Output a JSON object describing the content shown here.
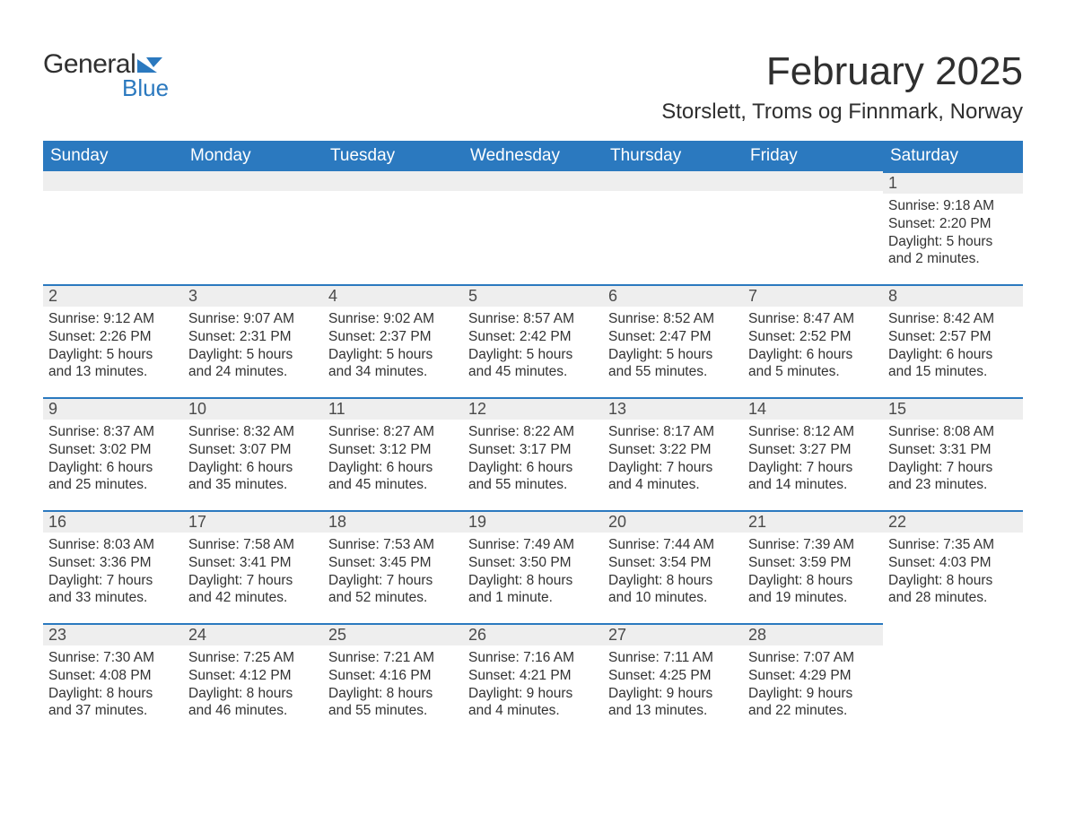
{
  "logo": {
    "text1": "General",
    "text2": "Blue"
  },
  "title": "February 2025",
  "location": "Storslett, Troms og Finnmark, Norway",
  "colors": {
    "header_bg": "#2b79bf",
    "header_text": "#ffffff",
    "dayhead_bg": "#eeeeee",
    "dayhead_border": "#2b79bf",
    "body_text": "#323232",
    "page_bg": "#ffffff",
    "logo_accent": "#2b79bf"
  },
  "weekdays": [
    "Sunday",
    "Monday",
    "Tuesday",
    "Wednesday",
    "Thursday",
    "Friday",
    "Saturday"
  ],
  "weeks": [
    [
      null,
      null,
      null,
      null,
      null,
      null,
      {
        "num": "1",
        "sunrise": "Sunrise: 9:18 AM",
        "sunset": "Sunset: 2:20 PM",
        "day1": "Daylight: 5 hours",
        "day2": "and 2 minutes."
      }
    ],
    [
      {
        "num": "2",
        "sunrise": "Sunrise: 9:12 AM",
        "sunset": "Sunset: 2:26 PM",
        "day1": "Daylight: 5 hours",
        "day2": "and 13 minutes."
      },
      {
        "num": "3",
        "sunrise": "Sunrise: 9:07 AM",
        "sunset": "Sunset: 2:31 PM",
        "day1": "Daylight: 5 hours",
        "day2": "and 24 minutes."
      },
      {
        "num": "4",
        "sunrise": "Sunrise: 9:02 AM",
        "sunset": "Sunset: 2:37 PM",
        "day1": "Daylight: 5 hours",
        "day2": "and 34 minutes."
      },
      {
        "num": "5",
        "sunrise": "Sunrise: 8:57 AM",
        "sunset": "Sunset: 2:42 PM",
        "day1": "Daylight: 5 hours",
        "day2": "and 45 minutes."
      },
      {
        "num": "6",
        "sunrise": "Sunrise: 8:52 AM",
        "sunset": "Sunset: 2:47 PM",
        "day1": "Daylight: 5 hours",
        "day2": "and 55 minutes."
      },
      {
        "num": "7",
        "sunrise": "Sunrise: 8:47 AM",
        "sunset": "Sunset: 2:52 PM",
        "day1": "Daylight: 6 hours",
        "day2": "and 5 minutes."
      },
      {
        "num": "8",
        "sunrise": "Sunrise: 8:42 AM",
        "sunset": "Sunset: 2:57 PM",
        "day1": "Daylight: 6 hours",
        "day2": "and 15 minutes."
      }
    ],
    [
      {
        "num": "9",
        "sunrise": "Sunrise: 8:37 AM",
        "sunset": "Sunset: 3:02 PM",
        "day1": "Daylight: 6 hours",
        "day2": "and 25 minutes."
      },
      {
        "num": "10",
        "sunrise": "Sunrise: 8:32 AM",
        "sunset": "Sunset: 3:07 PM",
        "day1": "Daylight: 6 hours",
        "day2": "and 35 minutes."
      },
      {
        "num": "11",
        "sunrise": "Sunrise: 8:27 AM",
        "sunset": "Sunset: 3:12 PM",
        "day1": "Daylight: 6 hours",
        "day2": "and 45 minutes."
      },
      {
        "num": "12",
        "sunrise": "Sunrise: 8:22 AM",
        "sunset": "Sunset: 3:17 PM",
        "day1": "Daylight: 6 hours",
        "day2": "and 55 minutes."
      },
      {
        "num": "13",
        "sunrise": "Sunrise: 8:17 AM",
        "sunset": "Sunset: 3:22 PM",
        "day1": "Daylight: 7 hours",
        "day2": "and 4 minutes."
      },
      {
        "num": "14",
        "sunrise": "Sunrise: 8:12 AM",
        "sunset": "Sunset: 3:27 PM",
        "day1": "Daylight: 7 hours",
        "day2": "and 14 minutes."
      },
      {
        "num": "15",
        "sunrise": "Sunrise: 8:08 AM",
        "sunset": "Sunset: 3:31 PM",
        "day1": "Daylight: 7 hours",
        "day2": "and 23 minutes."
      }
    ],
    [
      {
        "num": "16",
        "sunrise": "Sunrise: 8:03 AM",
        "sunset": "Sunset: 3:36 PM",
        "day1": "Daylight: 7 hours",
        "day2": "and 33 minutes."
      },
      {
        "num": "17",
        "sunrise": "Sunrise: 7:58 AM",
        "sunset": "Sunset: 3:41 PM",
        "day1": "Daylight: 7 hours",
        "day2": "and 42 minutes."
      },
      {
        "num": "18",
        "sunrise": "Sunrise: 7:53 AM",
        "sunset": "Sunset: 3:45 PM",
        "day1": "Daylight: 7 hours",
        "day2": "and 52 minutes."
      },
      {
        "num": "19",
        "sunrise": "Sunrise: 7:49 AM",
        "sunset": "Sunset: 3:50 PM",
        "day1": "Daylight: 8 hours",
        "day2": "and 1 minute."
      },
      {
        "num": "20",
        "sunrise": "Sunrise: 7:44 AM",
        "sunset": "Sunset: 3:54 PM",
        "day1": "Daylight: 8 hours",
        "day2": "and 10 minutes."
      },
      {
        "num": "21",
        "sunrise": "Sunrise: 7:39 AM",
        "sunset": "Sunset: 3:59 PM",
        "day1": "Daylight: 8 hours",
        "day2": "and 19 minutes."
      },
      {
        "num": "22",
        "sunrise": "Sunrise: 7:35 AM",
        "sunset": "Sunset: 4:03 PM",
        "day1": "Daylight: 8 hours",
        "day2": "and 28 minutes."
      }
    ],
    [
      {
        "num": "23",
        "sunrise": "Sunrise: 7:30 AM",
        "sunset": "Sunset: 4:08 PM",
        "day1": "Daylight: 8 hours",
        "day2": "and 37 minutes."
      },
      {
        "num": "24",
        "sunrise": "Sunrise: 7:25 AM",
        "sunset": "Sunset: 4:12 PM",
        "day1": "Daylight: 8 hours",
        "day2": "and 46 minutes."
      },
      {
        "num": "25",
        "sunrise": "Sunrise: 7:21 AM",
        "sunset": "Sunset: 4:16 PM",
        "day1": "Daylight: 8 hours",
        "day2": "and 55 minutes."
      },
      {
        "num": "26",
        "sunrise": "Sunrise: 7:16 AM",
        "sunset": "Sunset: 4:21 PM",
        "day1": "Daylight: 9 hours",
        "day2": "and 4 minutes."
      },
      {
        "num": "27",
        "sunrise": "Sunrise: 7:11 AM",
        "sunset": "Sunset: 4:25 PM",
        "day1": "Daylight: 9 hours",
        "day2": "and 13 minutes."
      },
      {
        "num": "28",
        "sunrise": "Sunrise: 7:07 AM",
        "sunset": "Sunset: 4:29 PM",
        "day1": "Daylight: 9 hours",
        "day2": "and 22 minutes."
      },
      null
    ]
  ]
}
